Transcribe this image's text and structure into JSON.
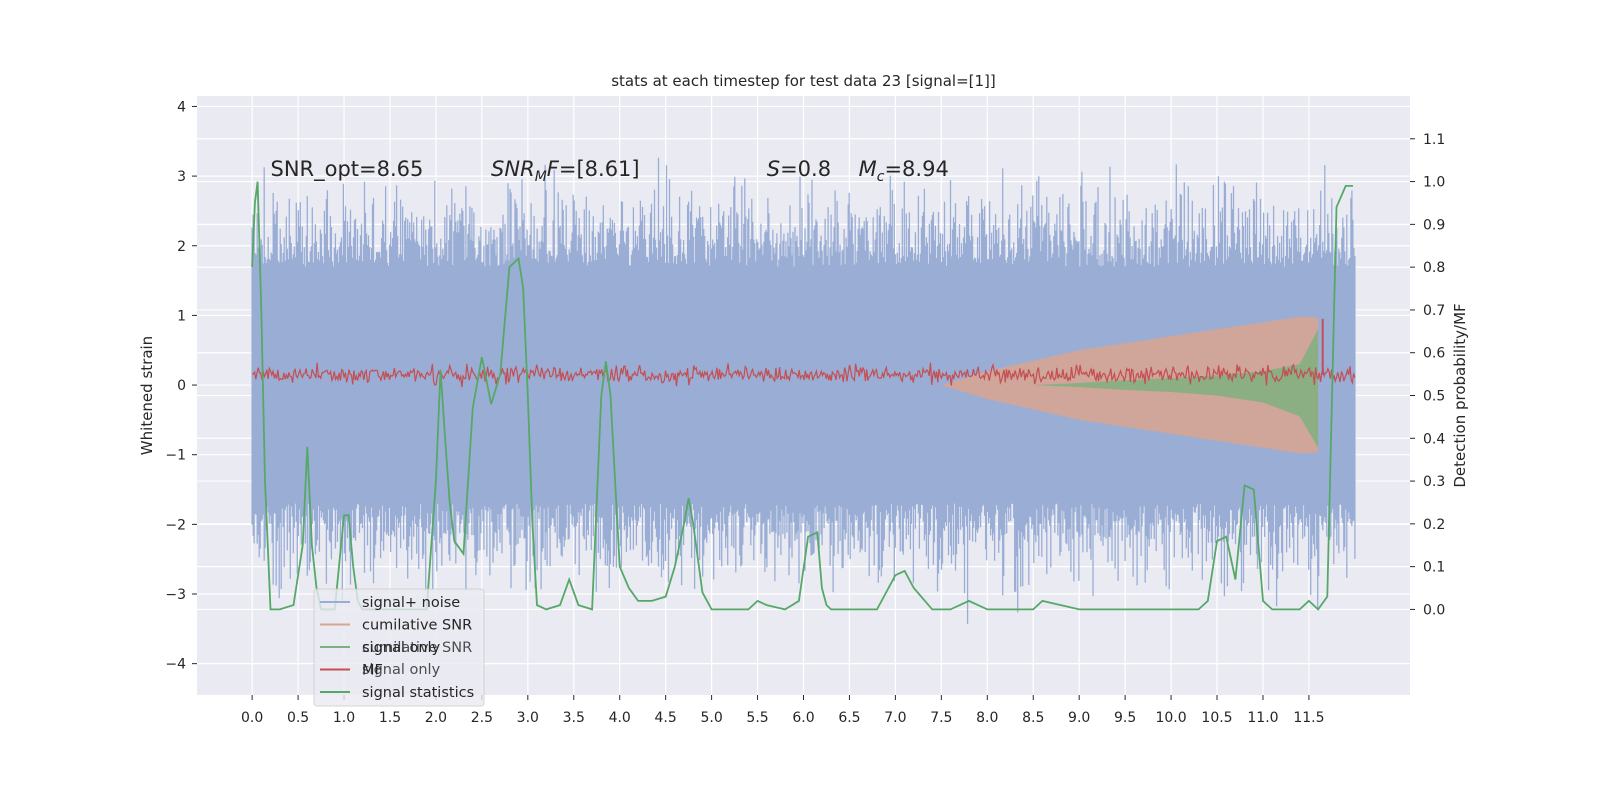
{
  "chart_data": {
    "type": "line",
    "title": "stats at each timestep for test data 23 [signal=[1]]",
    "xlabel": "",
    "ylabel": "Whitened strain",
    "ylabel_right": "Detection probability/MF",
    "xlim": [
      -0.6,
      12.6
    ],
    "ylim": [
      -4.45,
      4.15
    ],
    "ylim_right": [
      -0.2,
      1.2
    ],
    "xticks": [
      0.0,
      0.5,
      1.0,
      1.5,
      2.0,
      2.5,
      3.0,
      3.5,
      4.0,
      4.5,
      5.0,
      5.5,
      6.0,
      6.5,
      7.0,
      7.5,
      8.0,
      8.5,
      9.0,
      9.5,
      10.0,
      10.5,
      11.0,
      11.5
    ],
    "xtick_labels": [
      "0.0",
      "0.5",
      "1.0",
      "1.5",
      "2.0",
      "2.5",
      "3.0",
      "3.5",
      "4.0",
      "4.5",
      "5.0",
      "5.5",
      "6.0",
      "6.5",
      "7.0",
      "7.5",
      "8.0",
      "8.5",
      "9.0",
      "9.5",
      "10.0",
      "10.5",
      "11.0",
      "11.5"
    ],
    "yticks": [
      -4,
      -3,
      -2,
      -1,
      0,
      1,
      2,
      3,
      4
    ],
    "ytick_labels": [
      "−4",
      "−3",
      "−2",
      "−1",
      "0",
      "1",
      "2",
      "3",
      "4"
    ],
    "yticks_right": [
      0.0,
      0.1,
      0.2,
      0.3,
      0.4,
      0.5,
      0.6,
      0.7,
      0.8,
      0.9,
      1.0,
      1.1
    ],
    "ytick_labels_right": [
      "0.0",
      "0.1",
      "0.2",
      "0.3",
      "0.4",
      "0.5",
      "0.6",
      "0.7",
      "0.8",
      "0.9",
      "1.0",
      "1.1"
    ],
    "grid": true,
    "legend_position": "lower-left",
    "colors": {
      "background": "#eaeaf2",
      "signal_noise": "#9aaed5",
      "cumulative_snr": "#d9a38f",
      "signal_only": "#7fb07f",
      "mf": "#c44e52",
      "signal_statistics": "#55a868"
    },
    "annotations": [
      {
        "text": "SNR_opt=8.65",
        "x": 0.2,
        "y": 3.0
      },
      {
        "text": "SNR_MF=[8.61]",
        "x": 2.6,
        "y": 3.0
      },
      {
        "text": "S=0.8",
        "x": 5.6,
        "y": 3.0
      },
      {
        "text": "M_c=8.94",
        "x": 6.6,
        "y": 3.0
      }
    ],
    "noise_series": {
      "name": "signal+ noise",
      "x_range": [
        0.0,
        12.0
      ],
      "band_low": -1.7,
      "band_high": 1.7,
      "peak_max": 3.8,
      "trough_min": -3.7
    },
    "envelope_series": [
      {
        "name": "cumilative SNR",
        "x": [
          7.5,
          8.0,
          8.5,
          9.0,
          9.5,
          10.0,
          10.5,
          11.0,
          11.4,
          11.6
        ],
        "upper": [
          0.0,
          0.2,
          0.35,
          0.5,
          0.6,
          0.7,
          0.8,
          0.9,
          0.98,
          0.97
        ],
        "lower": [
          0.0,
          -0.2,
          -0.35,
          -0.5,
          -0.6,
          -0.7,
          -0.8,
          -0.9,
          -0.98,
          -0.97
        ]
      },
      {
        "name": "signal only",
        "x": [
          8.5,
          9.0,
          9.5,
          10.0,
          10.5,
          11.0,
          11.4,
          11.6
        ],
        "upper": [
          0.0,
          0.03,
          0.07,
          0.1,
          0.14,
          0.2,
          0.3,
          0.8
        ],
        "lower": [
          0.0,
          -0.03,
          -0.07,
          -0.1,
          -0.15,
          -0.25,
          -0.45,
          -0.9
        ]
      }
    ],
    "series": [
      {
        "name": "signal statistics",
        "axis": "right",
        "x": [
          0.0,
          0.03,
          0.06,
          0.1,
          0.14,
          0.2,
          0.3,
          0.45,
          0.55,
          0.6,
          0.65,
          0.7,
          0.75,
          0.8,
          0.9,
          1.0,
          1.05,
          1.1,
          1.15,
          1.2,
          1.3,
          1.5,
          1.7,
          1.9,
          2.0,
          2.05,
          2.1,
          2.15,
          2.2,
          2.3,
          2.4,
          2.5,
          2.6,
          2.7,
          2.8,
          2.9,
          2.95,
          3.0,
          3.05,
          3.1,
          3.2,
          3.35,
          3.45,
          3.55,
          3.7,
          3.8,
          3.85,
          3.9,
          4.0,
          4.1,
          4.2,
          4.35,
          4.5,
          4.6,
          4.7,
          4.75,
          4.8,
          4.9,
          5.0,
          5.2,
          5.4,
          5.5,
          5.6,
          5.8,
          5.95,
          6.05,
          6.15,
          6.2,
          6.25,
          6.3,
          6.5,
          6.8,
          7.0,
          7.1,
          7.2,
          7.4,
          7.6,
          7.8,
          8.0,
          8.2,
          8.5,
          8.6,
          8.8,
          9.0,
          9.5,
          10.0,
          10.3,
          10.4,
          10.5,
          10.6,
          10.7,
          10.8,
          10.9,
          11.0,
          11.1,
          11.2,
          11.4,
          11.5,
          11.6,
          11.7,
          11.8,
          11.9,
          11.98
        ],
        "values": [
          0.8,
          0.95,
          1.0,
          0.7,
          0.3,
          0.0,
          0.0,
          0.01,
          0.15,
          0.38,
          0.15,
          0.05,
          0.0,
          0.0,
          0.0,
          0.22,
          0.22,
          0.1,
          0.02,
          0.0,
          0.0,
          0.0,
          0.0,
          0.0,
          0.3,
          0.56,
          0.4,
          0.25,
          0.16,
          0.13,
          0.47,
          0.59,
          0.48,
          0.55,
          0.8,
          0.82,
          0.75,
          0.5,
          0.2,
          0.01,
          0.0,
          0.01,
          0.07,
          0.01,
          0.0,
          0.5,
          0.58,
          0.5,
          0.1,
          0.05,
          0.02,
          0.02,
          0.03,
          0.1,
          0.2,
          0.26,
          0.2,
          0.04,
          0.0,
          0.0,
          0.0,
          0.02,
          0.01,
          0.0,
          0.02,
          0.17,
          0.18,
          0.05,
          0.01,
          0.0,
          0.0,
          0.0,
          0.08,
          0.09,
          0.05,
          0.0,
          0.0,
          0.02,
          0.0,
          0.0,
          0.0,
          0.02,
          0.01,
          0.0,
          0.0,
          0.0,
          0.0,
          0.02,
          0.16,
          0.17,
          0.07,
          0.29,
          0.28,
          0.02,
          0.0,
          0.0,
          0.0,
          0.02,
          0.0,
          0.03,
          0.94,
          0.99,
          0.99
        ]
      },
      {
        "name": "MF",
        "axis": "left",
        "x_range": [
          0.0,
          12.0
        ],
        "mean": 0.15,
        "spread": 0.12,
        "spike_x": 11.65,
        "spike_value": 0.95
      }
    ],
    "legend": [
      {
        "label": "signal+ noise",
        "color": "#9aaed5"
      },
      {
        "label": "cumilative SNR",
        "color": "#d9a38f"
      },
      {
        "label": "signal only",
        "color": "#7fb07f"
      },
      {
        "label": "MF",
        "color": "#c44e52"
      },
      {
        "label": "signal statistics",
        "color": "#55a868"
      }
    ],
    "legend_ghost_labels": [
      "cumilative SNR",
      "signal only"
    ]
  }
}
